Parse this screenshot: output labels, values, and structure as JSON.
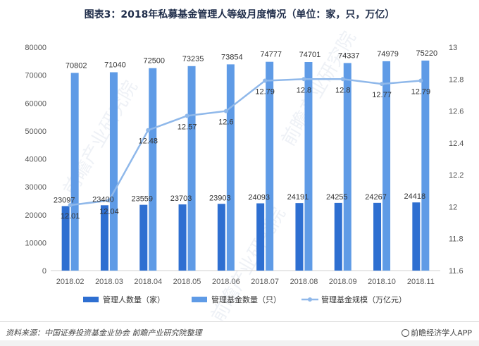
{
  "title": "图表3：2018年私募基金管理人等级月度情况（单位：家，只，万亿）",
  "footer": {
    "source": "资料来源：中国证券投资基金业协会  前瞻产业研究院整理",
    "brand": "前瞻经济学人APP"
  },
  "watermark": "前瞻产业研究院",
  "chart_data": {
    "type": "bar+line",
    "categories": [
      "2018.02",
      "2018.03",
      "2018.04",
      "2018.05",
      "2018.06",
      "2018.07",
      "2018.08",
      "2018.09",
      "2018.10",
      "2018.11"
    ],
    "series": [
      {
        "name": "管理人数量（家）",
        "type": "bar",
        "axis": "left",
        "color": "#2e6fd1",
        "values": [
          23097,
          23400,
          23559,
          23703,
          23903,
          24093,
          24191,
          24255,
          24267,
          24418
        ]
      },
      {
        "name": "管理基金数量（只）",
        "type": "bar",
        "axis": "left",
        "color": "#5f9be6",
        "values": [
          70802,
          71040,
          72500,
          73235,
          73854,
          74777,
          74701,
          74337,
          74979,
          75220
        ]
      },
      {
        "name": "管理基金规模（万亿元）",
        "type": "line",
        "axis": "right",
        "color": "#8fb8ea",
        "values": [
          12.01,
          12.04,
          12.48,
          12.57,
          12.6,
          12.79,
          12.8,
          12.8,
          12.77,
          12.79
        ]
      }
    ],
    "y_left": {
      "min": 0,
      "max": 80000,
      "ticks": [
        0,
        10000,
        20000,
        30000,
        40000,
        50000,
        60000,
        70000,
        80000
      ]
    },
    "y_right": {
      "min": 11.6,
      "max": 13,
      "ticks": [
        "11.6",
        "11.8",
        "12",
        "12.2",
        "12.4",
        "12.6",
        "12.8",
        "13"
      ]
    },
    "legend_position": "bottom"
  }
}
